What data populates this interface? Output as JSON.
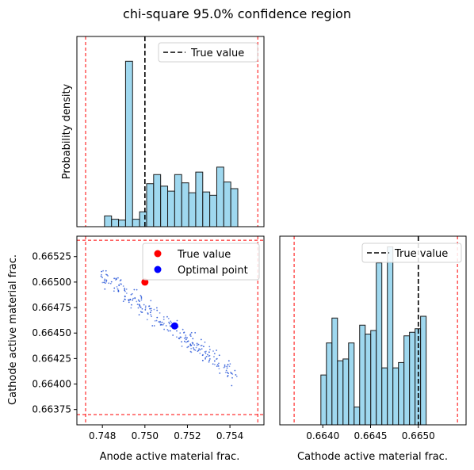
{
  "title": "chi-square 95.0% confidence region",
  "colors": {
    "hist_fill": "#87ceeb",
    "hist_edge": "#1a1a1a",
    "true_line": "#000000",
    "bounds": "#ff0000",
    "scatter": "#1f4fd6",
    "true_point": "#ff0000",
    "optimal_point": "#0000ff"
  },
  "chart_data": [
    {
      "type": "bar",
      "panel": "top-left",
      "xlabel": "",
      "ylabel": "Probability density",
      "xlim": [
        0.7468,
        0.7556
      ],
      "bin_edges": [
        0.7481,
        0.74843,
        0.74876,
        0.74909,
        0.74942,
        0.74975,
        0.75008,
        0.75041,
        0.75074,
        0.75107,
        0.7514,
        0.75173,
        0.75206,
        0.75239,
        0.75272,
        0.75305,
        0.75338,
        0.75371,
        0.75404,
        0.75437
      ],
      "values": [
        0.26,
        0.18,
        0.16,
        4.0,
        0.18,
        0.36,
        1.04,
        1.26,
        0.98,
        0.86,
        1.26,
        1.06,
        0.82,
        1.32,
        0.84,
        0.76,
        1.44,
        1.08,
        0.92
      ],
      "ylim": [
        0,
        4.6
      ],
      "true_value": 0.75,
      "bounds": [
        0.74721,
        0.75531
      ],
      "legend": {
        "label": "True value",
        "position": "upper right"
      }
    },
    {
      "type": "scatter",
      "panel": "bottom-left",
      "xlabel": "Anode active material frac.",
      "ylabel": "Cathode active material frac.",
      "xlim": [
        0.7468,
        0.7556
      ],
      "ylim": [
        0.6636,
        0.66545
      ],
      "xticks": [
        "0.748",
        "0.750",
        "0.752",
        "0.754"
      ],
      "yticks": [
        "0.66375",
        "0.66400",
        "0.66425",
        "0.66450",
        "0.66475",
        "0.66500",
        "0.66525"
      ],
      "band": {
        "x_start": 0.748,
        "x_end": 0.7543,
        "y_at_start": 0.66507,
        "y_at_end": 0.66407
      },
      "true_point": {
        "x": 0.75,
        "y": 0.665
      },
      "optimal_point": {
        "x": 0.7514,
        "y": 0.66457
      },
      "bounds_x": [
        0.74721,
        0.75531
      ],
      "bounds_y": [
        0.6637,
        0.66541
      ],
      "legend": {
        "entries": [
          "True value",
          "Optimal point"
        ],
        "position": "upper right"
      }
    },
    {
      "type": "bar",
      "panel": "bottom-right",
      "xlabel": "Cathode active material frac.",
      "ylabel": "",
      "xlim": [
        0.66355,
        0.6655
      ],
      "xticks": [
        "0.6640",
        "0.6645",
        "0.6650"
      ],
      "bin_edges": [
        0.66398,
        0.664038,
        0.664096,
        0.664154,
        0.664212,
        0.66427,
        0.664328,
        0.664386,
        0.664444,
        0.664502,
        0.66456,
        0.664618,
        0.664676,
        0.664734,
        0.664792,
        0.66485,
        0.664908,
        0.664966,
        0.665024,
        0.665082,
        0.66514
      ],
      "values": [
        1.4,
        2.3,
        3.0,
        1.8,
        1.85,
        2.3,
        0.5,
        2.8,
        2.55,
        2.65,
        4.55,
        1.6,
        5.0,
        1.6,
        1.75,
        2.5,
        2.6,
        2.7,
        3.05,
        0.0
      ],
      "ylim": [
        0,
        5.3
      ],
      "true_value": 0.665,
      "bounds": [
        0.6637,
        0.66541
      ],
      "legend": {
        "label": "True value",
        "position": "upper right"
      }
    }
  ]
}
